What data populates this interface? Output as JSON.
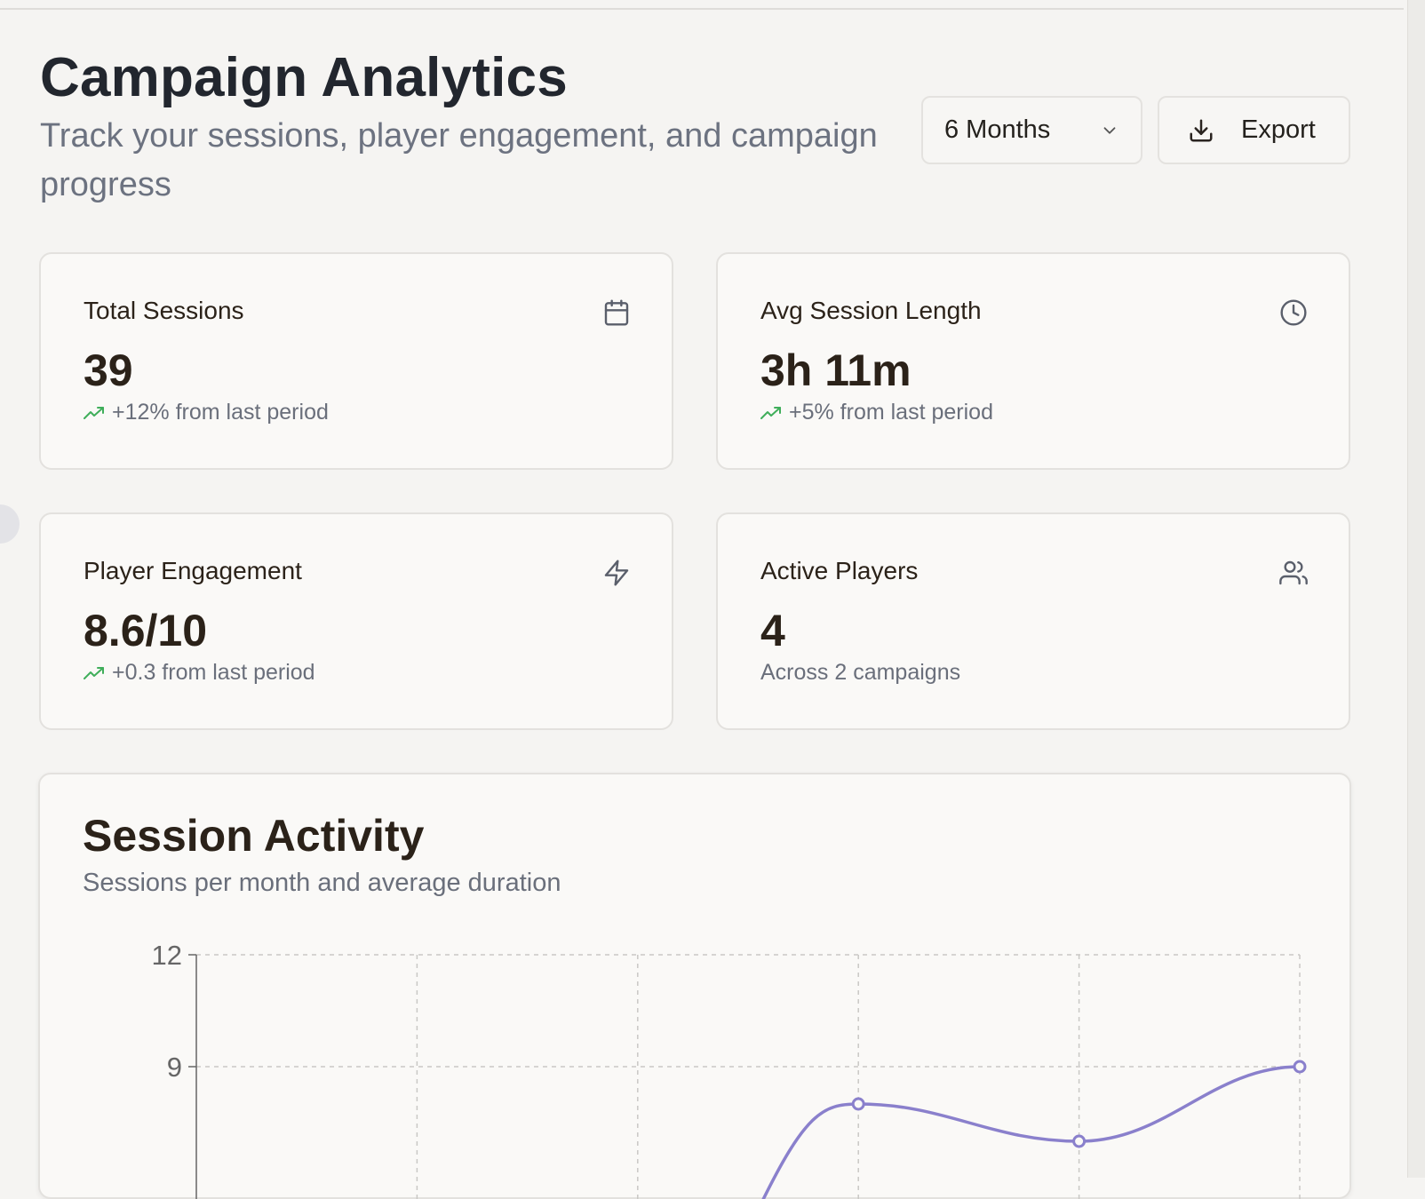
{
  "header": {
    "title": "Campaign Analytics",
    "subtitle": "Track your sessions, player engagement, and campaign progress",
    "range_select": {
      "value": "6 Months",
      "icon": "chevron-down-icon"
    },
    "export_button": {
      "label": "Export",
      "icon": "download-icon"
    }
  },
  "stats": [
    {
      "label": "Total Sessions",
      "value": "39",
      "delta": "+12% from last period",
      "icon": "calendar-icon",
      "trend_icon": "trending-up-icon"
    },
    {
      "label": "Avg Session Length",
      "value": "3h 11m",
      "delta": "+5% from last period",
      "icon": "clock-icon",
      "trend_icon": "trending-up-icon"
    },
    {
      "label": "Player Engagement",
      "value": "8.6/10",
      "delta": "+0.3 from last period",
      "icon": "zap-icon",
      "trend_icon": "trending-up-icon"
    },
    {
      "label": "Active Players",
      "value": "4",
      "delta": "Across 2 campaigns",
      "icon": "users-icon"
    }
  ],
  "session_activity": {
    "title": "Session Activity",
    "subtitle": "Sessions per month and average duration"
  },
  "chart_data": {
    "type": "line",
    "title": "",
    "xlabel": "",
    "ylabel": "",
    "ylim": [
      0,
      12
    ],
    "yticks": [
      12,
      9
    ],
    "grid": true,
    "x_count": 6,
    "series": [
      {
        "values": [
          null,
          null,
          null,
          8,
          7,
          9
        ],
        "color": "#8a80cc"
      }
    ],
    "visible_partial": true
  },
  "colors": {
    "accent_line": "#8a80cc",
    "trend_up": "#3fae5a"
  }
}
